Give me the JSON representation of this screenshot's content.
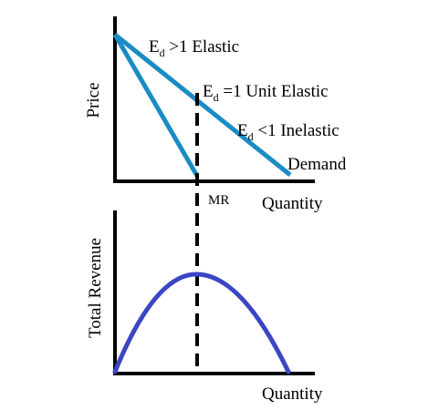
{
  "colors": {
    "background": "#ffffff",
    "axis": "#000000",
    "demand_mr": "#1a8cc4",
    "total_revenue": "#3b46c4",
    "divider": "#000000"
  },
  "top_chart": {
    "y_axis_label": "Price",
    "x_axis_label": "Quantity",
    "demand_label": "Demand",
    "mr_label": "MR",
    "regions": [
      {
        "symbol": "E",
        "subscript": "d",
        "relation": " >1 Elastic"
      },
      {
        "symbol": "E",
        "subscript": "d",
        "relation": " =1 Unit Elastic"
      },
      {
        "symbol": "E",
        "subscript": "d",
        "relation": " <1 Inelastic"
      }
    ]
  },
  "bottom_chart": {
    "y_axis_label": "Total Revenue",
    "x_axis_label": "Quantity"
  }
}
